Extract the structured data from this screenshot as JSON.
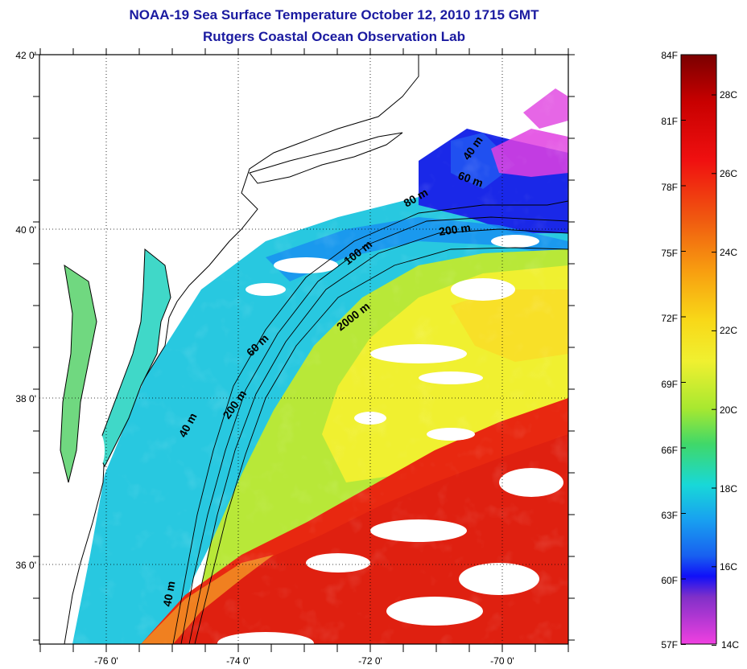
{
  "title_line1": "NOAA-19 Sea Surface Temperature October 12, 2010 1715 GMT",
  "title_line2": "Rutgers Coastal Ocean Observation Lab",
  "lat_ticks": [
    "42 0'",
    "40 0'",
    "38 0'",
    "36 0'"
  ],
  "lon_ticks": [
    "-76 0'",
    "-74 0'",
    "-72 0'",
    "-70 0'"
  ],
  "depth_contour_labels": [
    "40 m",
    "60 m",
    "80 m",
    "100 m",
    "200 m",
    "2000 m",
    "200 m",
    "60 m",
    "40 m",
    "40 m"
  ],
  "colorbar": {
    "fahrenheit_labels": [
      "84F",
      "81F",
      "78F",
      "75F",
      "72F",
      "69F",
      "66F",
      "63F",
      "60F",
      "57F"
    ],
    "celsius_labels": [
      "28C",
      "26C",
      "24C",
      "22C",
      "20C",
      "18C",
      "16C",
      "14C"
    ]
  },
  "colors": {
    "title": "#1a1aa0",
    "land": "#ffffff",
    "coastline": "#000000",
    "cold": "#1010e0",
    "cool": "#20c8e8",
    "warm": "#f0e020",
    "hot": "#e82010"
  }
}
